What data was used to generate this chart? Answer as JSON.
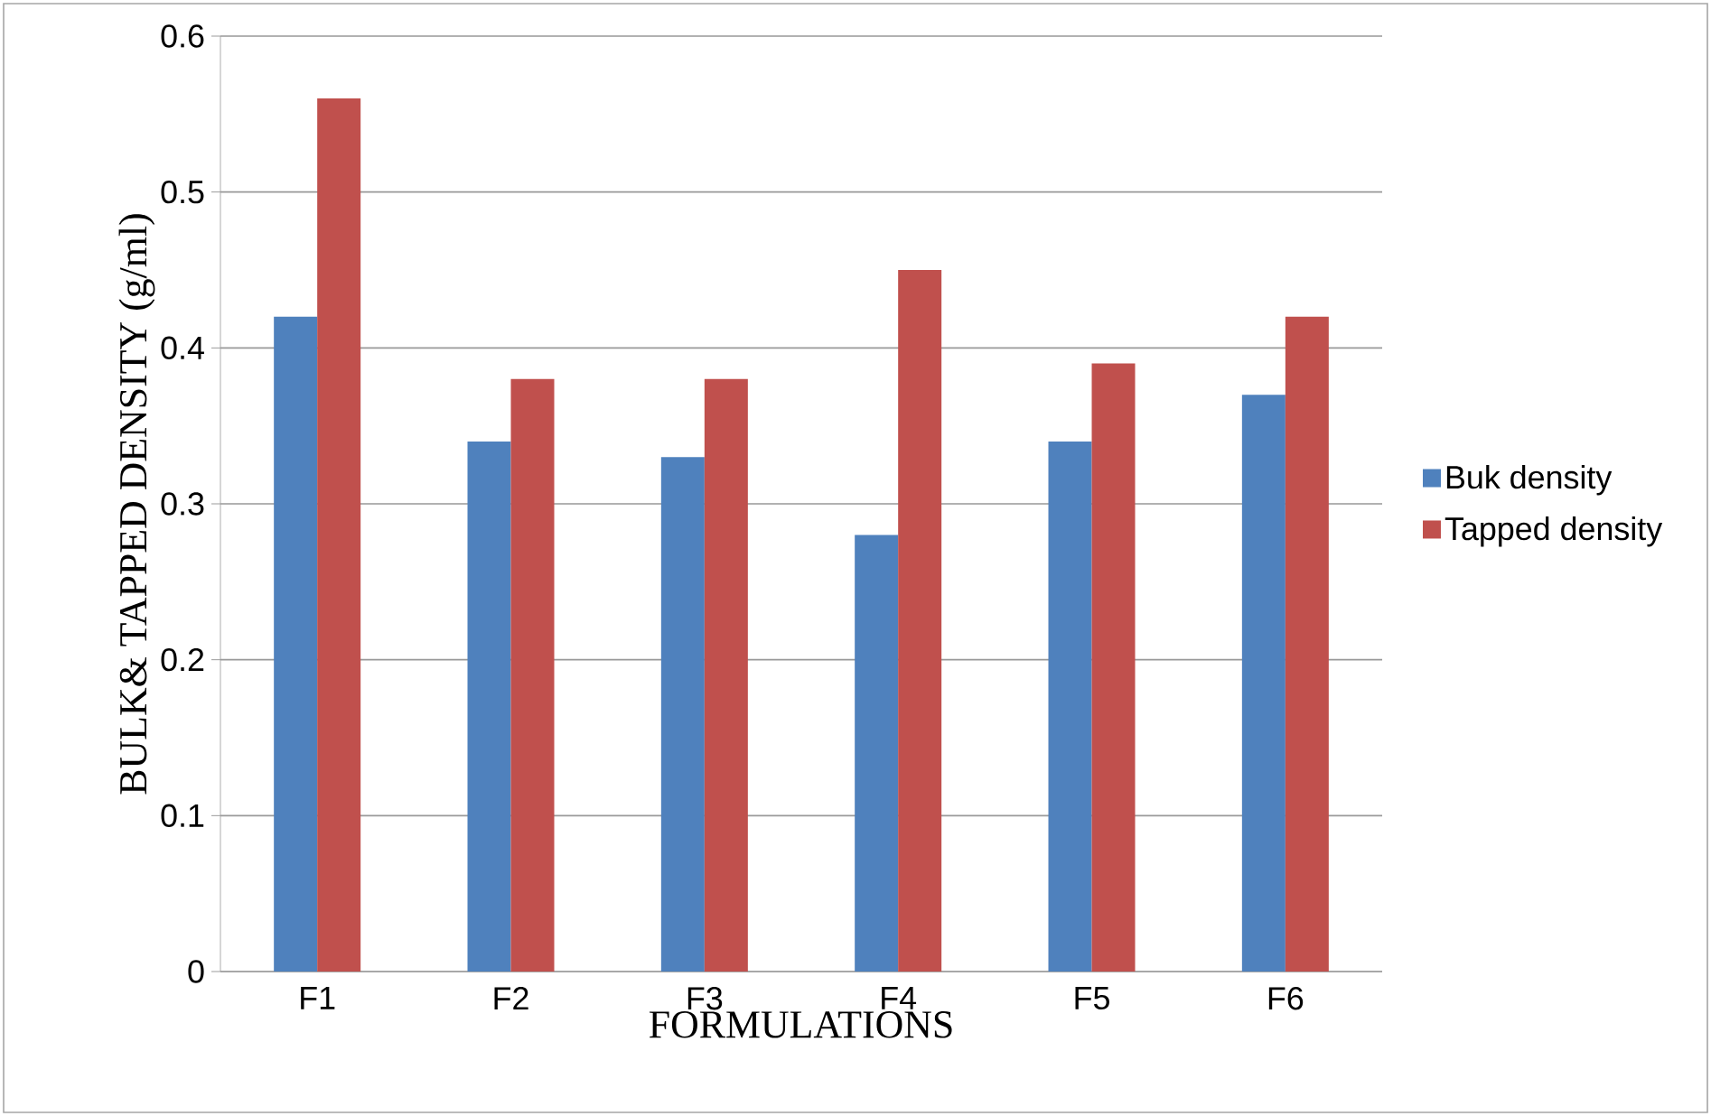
{
  "chart_data": {
    "type": "bar",
    "xlabel": "FORMULATIONS",
    "ylabel": "BULK& TAPPED DENSITY (g/ml)",
    "categories": [
      "F1",
      "F2",
      "F3",
      "F4",
      "F5",
      "F6"
    ],
    "series": [
      {
        "name": "Buk density",
        "color": "#4f81bd",
        "values": [
          0.42,
          0.34,
          0.33,
          0.28,
          0.34,
          0.37
        ]
      },
      {
        "name": "Tapped density",
        "color": "#c0504d",
        "values": [
          0.56,
          0.38,
          0.38,
          0.45,
          0.39,
          0.42
        ]
      }
    ],
    "ylim": [
      0,
      0.6
    ],
    "yticks": [
      0,
      0.1,
      0.2,
      0.3,
      0.4,
      0.5,
      0.6
    ],
    "grid": "y",
    "legend": "right"
  }
}
